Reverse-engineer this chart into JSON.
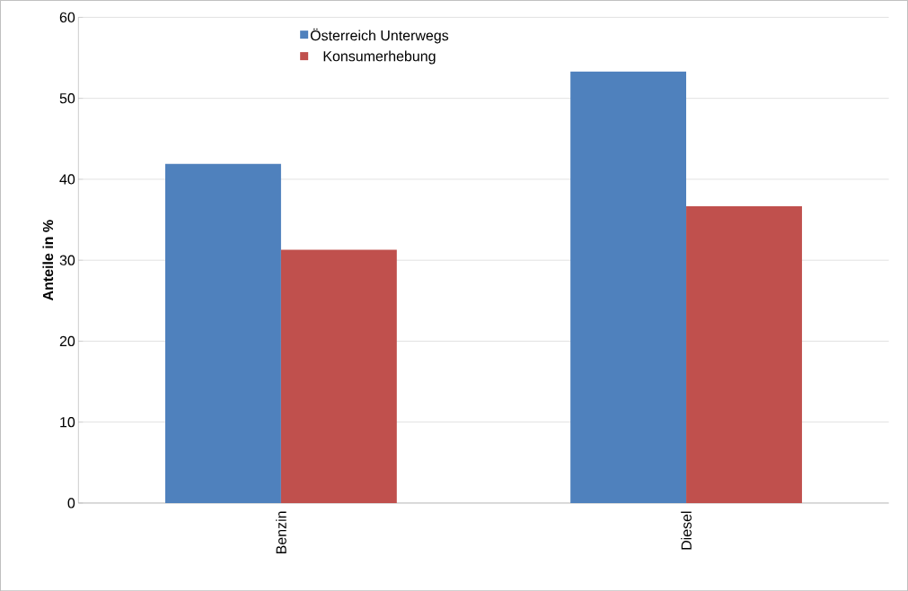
{
  "chart_data": {
    "type": "bar",
    "ylabel": "Anteile in %",
    "categories": [
      "Benzin",
      "Diesel"
    ],
    "series": [
      {
        "name": "Österreich Unterwegs",
        "color": "#4f81bd",
        "values": [
          41.9,
          53.3
        ]
      },
      {
        "name": "Konsumerhebung",
        "color": "#c0504d",
        "values": [
          31.3,
          36.7
        ]
      }
    ],
    "ylim": [
      0,
      60
    ],
    "yticks": [
      0,
      10,
      20,
      30,
      40,
      50,
      60
    ],
    "grid": "y",
    "legend": "top"
  }
}
